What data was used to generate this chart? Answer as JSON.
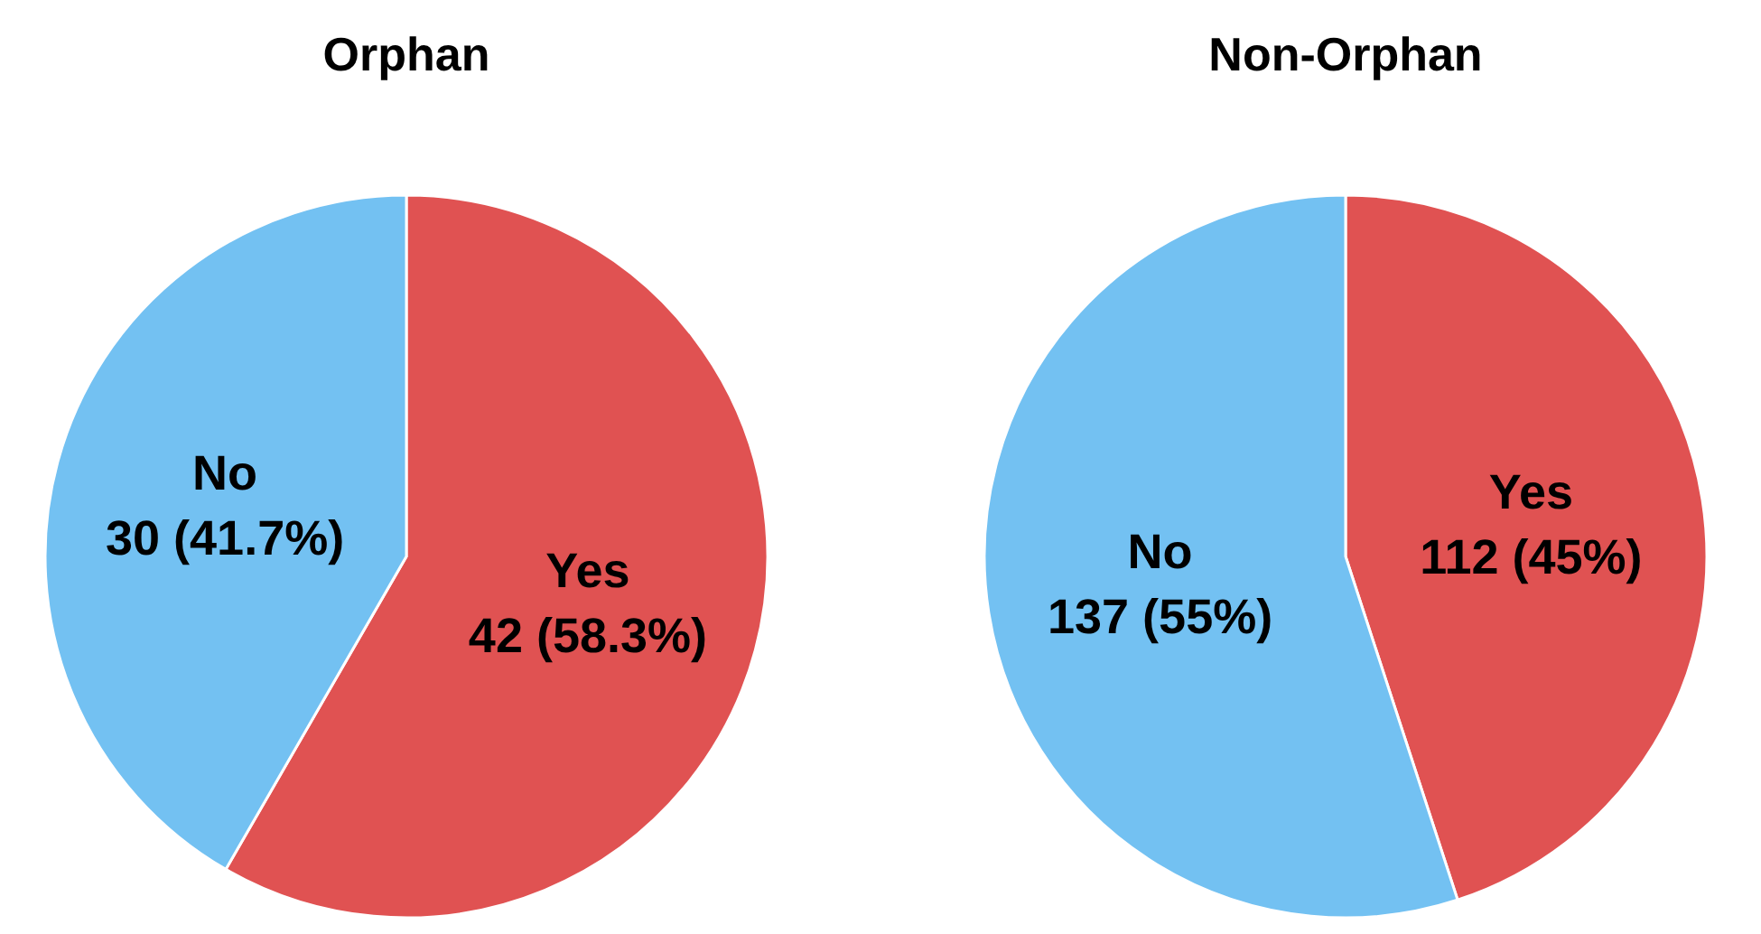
{
  "chart_data": [
    {
      "type": "pie",
      "title": "Orphan",
      "categories": [
        "Yes",
        "No"
      ],
      "values": [
        42,
        30
      ],
      "colors": [
        "#e05252",
        "#73c1f2"
      ],
      "value_labels": [
        "42 (58.3%)",
        "30 (41.7%)"
      ]
    },
    {
      "type": "pie",
      "title": "Non-Orphan",
      "categories": [
        "Yes",
        "No"
      ],
      "values": [
        112,
        137
      ],
      "colors": [
        "#e05252",
        "#73c1f2"
      ],
      "value_labels": [
        "112 (45%)",
        "137 (55%)"
      ]
    }
  ]
}
